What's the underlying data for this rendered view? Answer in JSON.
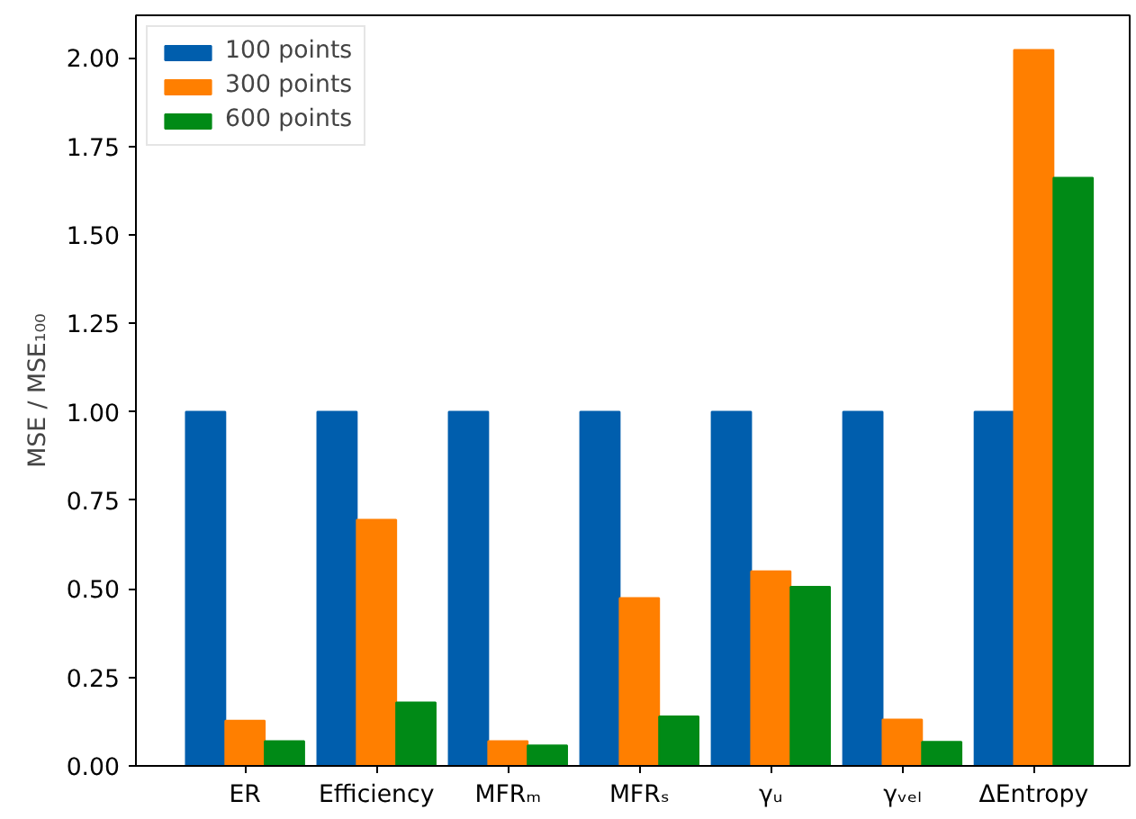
{
  "chart_data": {
    "type": "bar",
    "ylabel": "MSE / MSE₁₀₀",
    "categories": [
      "ER",
      "Efficiency",
      "MFRₘ",
      "MFRₛ",
      "γᵤ",
      "γᵥₑₗ",
      "ΔEntropy"
    ],
    "series": [
      {
        "name": "100 points",
        "color": "#005ead",
        "values": [
          1,
          1,
          1,
          1,
          1,
          1,
          1
        ]
      },
      {
        "name": "300 points",
        "color": "#ff7f00",
        "values": [
          0.128,
          0.695,
          0.07,
          0.474,
          0.55,
          0.131,
          2.022
        ]
      },
      {
        "name": "600 points",
        "color": "#008a16",
        "values": [
          0.07,
          0.179,
          0.058,
          0.14,
          0.506,
          0.068,
          1.661
        ]
      }
    ],
    "ylim": [
      0,
      2.12
    ],
    "yticks": [
      {
        "value": 0,
        "label": "0.00"
      },
      {
        "value": 0.25,
        "label": "0.25"
      },
      {
        "value": 0.5,
        "label": "0.50"
      },
      {
        "value": 0.75,
        "label": "0.75"
      },
      {
        "value": 1,
        "label": "1.00"
      },
      {
        "value": 1.25,
        "label": "1.25"
      },
      {
        "value": 1.5,
        "label": "1.50"
      },
      {
        "value": 1.75,
        "label": "1.75"
      },
      {
        "value": 2,
        "label": "2.00"
      }
    ],
    "grid": false,
    "legend": "top left"
  }
}
